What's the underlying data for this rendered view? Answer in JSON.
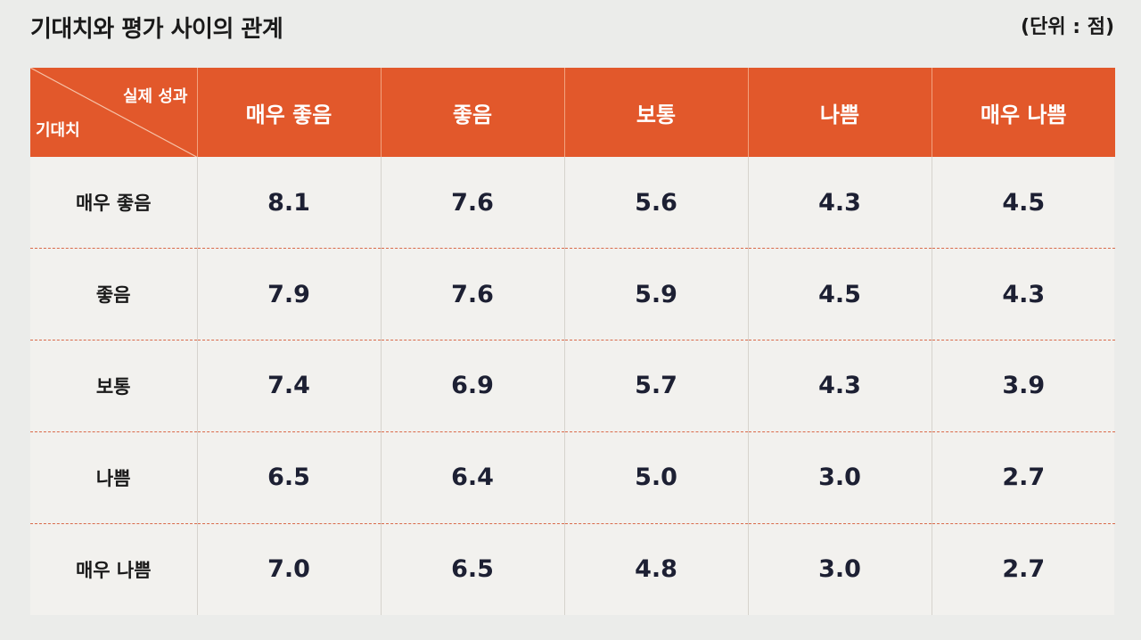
{
  "title": "기대치와 평가 사이의 관계",
  "unit": "(단위 : 점)",
  "table": {
    "corner_actual": "실제 성과",
    "corner_expected": "기대치",
    "columns": [
      "매우 좋음",
      "좋음",
      "보통",
      "나쁨",
      "매우 나쁨"
    ],
    "rows": [
      {
        "label": "매우 좋음",
        "values": [
          "8.1",
          "7.6",
          "5.6",
          "4.3",
          "4.5"
        ]
      },
      {
        "label": "좋음",
        "values": [
          "7.9",
          "7.6",
          "5.9",
          "4.5",
          "4.3"
        ]
      },
      {
        "label": "보통",
        "values": [
          "7.4",
          "6.9",
          "5.7",
          "4.3",
          "3.9"
        ]
      },
      {
        "label": "나쁨",
        "values": [
          "6.5",
          "6.4",
          "5.0",
          "3.0",
          "2.7"
        ]
      },
      {
        "label": "매우 나쁨",
        "values": [
          "7.0",
          "6.5",
          "4.8",
          "3.0",
          "2.7"
        ]
      }
    ]
  },
  "colors": {
    "header_bg": "#e2582b",
    "row_divider": "#d96a4a",
    "page_bg": "#ebecea"
  }
}
